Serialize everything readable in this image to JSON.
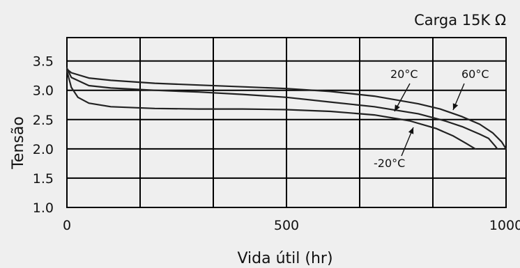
{
  "chart_data": {
    "type": "line",
    "annotation": "Carga 15K Ω",
    "xlabel": "Vida útil (hr)",
    "ylabel": "Tensão",
    "xlim": [
      0,
      1000
    ],
    "ylim": [
      1.0,
      3.9
    ],
    "x_ticks": [
      "0",
      "500",
      "1000"
    ],
    "y_ticks": [
      "1.0",
      "1.5",
      "2.0",
      "2.5",
      "3.0",
      "3.5"
    ],
    "grid": true,
    "series": [
      {
        "name": "20°C",
        "x": [
          0,
          10,
          50,
          100,
          200,
          300,
          400,
          500,
          600,
          700,
          800,
          860,
          900,
          940,
          960,
          975,
          980
        ],
        "y": [
          3.38,
          3.22,
          3.08,
          3.04,
          3.0,
          2.97,
          2.93,
          2.88,
          2.8,
          2.72,
          2.6,
          2.48,
          2.38,
          2.25,
          2.18,
          2.05,
          2.0
        ]
      },
      {
        "name": "60°C",
        "x": [
          0,
          10,
          50,
          100,
          200,
          300,
          400,
          500,
          600,
          700,
          800,
          850,
          900,
          940,
          970,
          990,
          1000
        ],
        "y": [
          3.36,
          3.3,
          3.21,
          3.17,
          3.12,
          3.09,
          3.06,
          3.03,
          2.98,
          2.9,
          2.77,
          2.68,
          2.55,
          2.42,
          2.27,
          2.12,
          2.0
        ]
      },
      {
        "name": "-20°C",
        "x": [
          0,
          10,
          25,
          50,
          100,
          200,
          300,
          400,
          500,
          600,
          700,
          780,
          840,
          880,
          910,
          930
        ],
        "y": [
          3.33,
          3.05,
          2.88,
          2.78,
          2.72,
          2.69,
          2.68,
          2.68,
          2.67,
          2.64,
          2.58,
          2.48,
          2.35,
          2.22,
          2.09,
          2.0
        ]
      }
    ],
    "series_labels": [
      {
        "text": "20°C"
      },
      {
        "text": "60°C"
      },
      {
        "text": "-20°C"
      }
    ]
  }
}
